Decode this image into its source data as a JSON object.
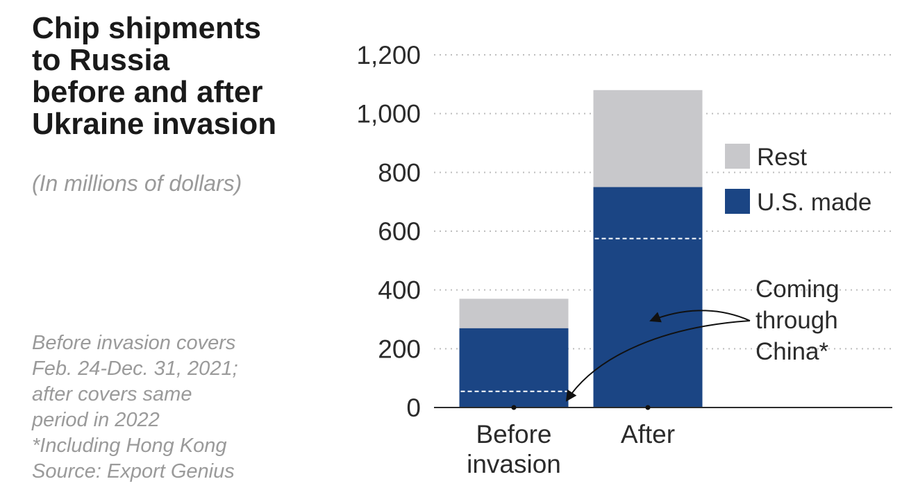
{
  "heading": {
    "title_lines": [
      "Chip shipments",
      "to Russia",
      "before and after",
      "Ukraine invasion"
    ],
    "subtitle": "(In millions of dollars)"
  },
  "notes": {
    "lines": [
      "Before invasion covers",
      "Feb. 24-Dec. 31, 2021;",
      "after covers same",
      "period in 2022",
      "*Including Hong Kong",
      "Source: Export Genius"
    ]
  },
  "chart_data": {
    "type": "bar",
    "stacked": true,
    "categories": [
      [
        "Before",
        "invasion"
      ],
      [
        "After"
      ]
    ],
    "series": [
      {
        "name": "U.S. made",
        "values": [
          270,
          750
        ],
        "color": "#1b4584"
      },
      {
        "name": "Rest",
        "values": [
          100,
          330
        ],
        "color": "#c8c8cb"
      }
    ],
    "coming_through_china": {
      "label_lines": [
        "Coming",
        "through",
        "China*"
      ],
      "values": [
        55,
        575
      ]
    },
    "ylim": [
      0,
      1200
    ],
    "yticks": [
      0,
      200,
      400,
      600,
      800,
      1000,
      1200
    ],
    "ytick_labels": [
      "0",
      "200",
      "400",
      "600",
      "800",
      "1,000",
      "1,200"
    ],
    "grid": true,
    "legend_position": "right",
    "legend": [
      {
        "label": "Rest",
        "color": "#c8c8cb"
      },
      {
        "label": "U.S. made",
        "color": "#1b4584"
      }
    ]
  }
}
